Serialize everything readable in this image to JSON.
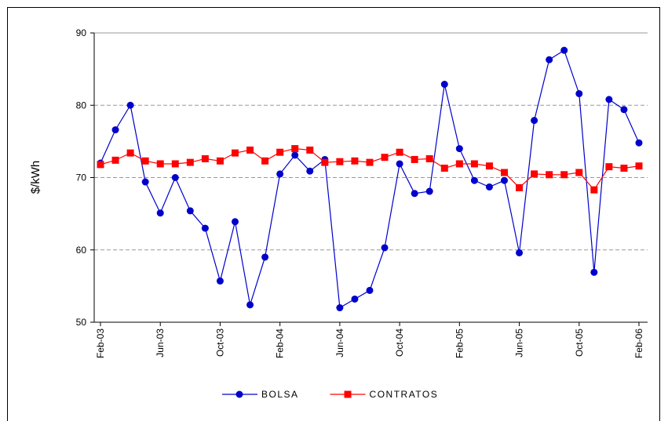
{
  "chart_data": {
    "type": "line",
    "ylabel": "$/kWh",
    "categories": [
      "Feb-03",
      null,
      null,
      null,
      "Jun-03",
      null,
      null,
      null,
      "Oct-03",
      null,
      null,
      null,
      "Feb-04",
      null,
      null,
      null,
      "Jun-04",
      null,
      null,
      null,
      "Oct-04",
      null,
      null,
      null,
      "Feb-05",
      null,
      null,
      null,
      "Jun-05",
      null,
      null,
      null,
      "Oct-05",
      null,
      null,
      null,
      "Feb-06"
    ],
    "series": [
      {
        "name": "BOLSA",
        "color": "#0000cc",
        "marker": "circle",
        "values": [
          72,
          76.6,
          80,
          69.4,
          65.1,
          70,
          65.4,
          63,
          55.7,
          63.9,
          52.4,
          59,
          70.5,
          73.1,
          70.9,
          72.5,
          52,
          53.2,
          54.4,
          60.3,
          71.9,
          67.8,
          68.1,
          82.9,
          74,
          69.6,
          68.7,
          69.6,
          59.6,
          77.9,
          86.3,
          87.6,
          81.6,
          56.9,
          80.8,
          79.4,
          74.8
        ]
      },
      {
        "name": "CONTRATOS",
        "color": "#ff0000",
        "marker": "square",
        "values": [
          71.8,
          72.4,
          73.4,
          72.3,
          71.9,
          71.9,
          72.1,
          72.6,
          72.3,
          73.4,
          73.8,
          72.3,
          73.5,
          74,
          73.8,
          72.1,
          72.2,
          72.3,
          72.1,
          72.8,
          73.5,
          72.5,
          72.6,
          71.3,
          71.9,
          71.9,
          71.6,
          70.7,
          68.6,
          70.5,
          70.4,
          70.4,
          70.7,
          68.3,
          71.5,
          71.3,
          71.6
        ]
      }
    ],
    "ylim": [
      50,
      90
    ],
    "yticks": [
      50,
      60,
      70,
      80,
      90
    ],
    "grid": true,
    "legend": "bottom"
  }
}
